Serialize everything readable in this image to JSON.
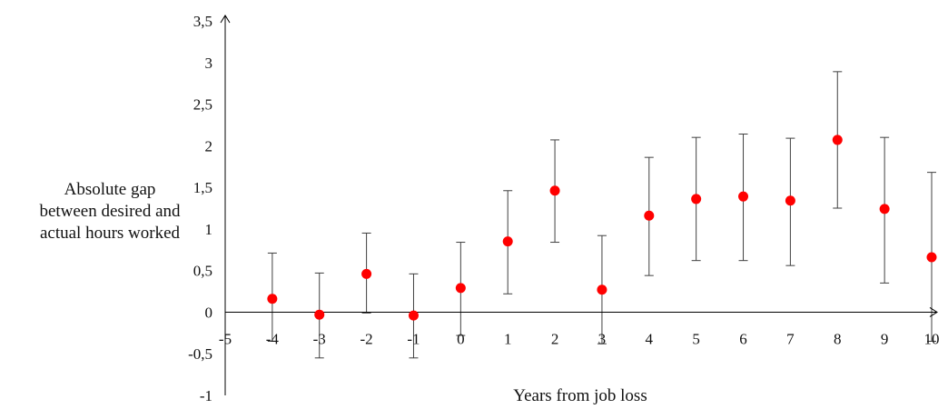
{
  "chart_data": {
    "type": "scatter",
    "title": "",
    "xlabel": "Years from job loss",
    "ylabel_lines": [
      "Absolute gap",
      "between desired and",
      "actual hours worked"
    ],
    "xlim": [
      -5,
      10
    ],
    "ylim": [
      -1,
      3.5
    ],
    "x_ticks": [
      -5,
      -4,
      -3,
      -2,
      -1,
      0,
      1,
      2,
      3,
      4,
      5,
      6,
      7,
      8,
      9,
      10
    ],
    "x_tick_labels": [
      "-5",
      "-4",
      "-3",
      "-2",
      "-1",
      "0",
      "1",
      "2",
      "3",
      "4",
      "5",
      "6",
      "7",
      "8",
      "9",
      "10"
    ],
    "y_ticks": [
      -1,
      -0.5,
      0,
      0.5,
      1,
      1.5,
      2,
      2.5,
      3,
      3.5
    ],
    "y_tick_labels": [
      "-1",
      "-0,5",
      "0",
      "0,5",
      "1",
      "1,5",
      "2",
      "2,5",
      "3",
      "3,5"
    ],
    "grid": false,
    "legend": "none",
    "marker_color": "#ff0000",
    "errorbar_color": "#404040",
    "series": [
      {
        "points": [
          {
            "x": -4,
            "y": 0.16,
            "lower": -0.35,
            "upper": 0.71
          },
          {
            "x": -3,
            "y": -0.03,
            "lower": -0.55,
            "upper": 0.47
          },
          {
            "x": -2,
            "y": 0.46,
            "lower": -0.01,
            "upper": 0.95
          },
          {
            "x": -1,
            "y": -0.04,
            "lower": -0.55,
            "upper": 0.46
          },
          {
            "x": 0,
            "y": 0.29,
            "lower": -0.28,
            "upper": 0.84
          },
          {
            "x": 1,
            "y": 0.85,
            "lower": 0.22,
            "upper": 1.46
          },
          {
            "x": 2,
            "y": 1.46,
            "lower": 0.84,
            "upper": 2.07
          },
          {
            "x": 3,
            "y": 0.27,
            "lower": -0.38,
            "upper": 0.92
          },
          {
            "x": 4,
            "y": 1.16,
            "lower": 0.44,
            "upper": 1.86
          },
          {
            "x": 5,
            "y": 1.36,
            "lower": 0.62,
            "upper": 2.1
          },
          {
            "x": 6,
            "y": 1.39,
            "lower": 0.62,
            "upper": 2.14
          },
          {
            "x": 7,
            "y": 1.34,
            "lower": 0.56,
            "upper": 2.09
          },
          {
            "x": 8,
            "y": 2.07,
            "lower": 1.25,
            "upper": 2.89
          },
          {
            "x": 9,
            "y": 1.24,
            "lower": 0.35,
            "upper": 2.1
          },
          {
            "x": 10,
            "y": 0.66,
            "lower": -0.35,
            "upper": 1.68
          }
        ]
      }
    ]
  }
}
